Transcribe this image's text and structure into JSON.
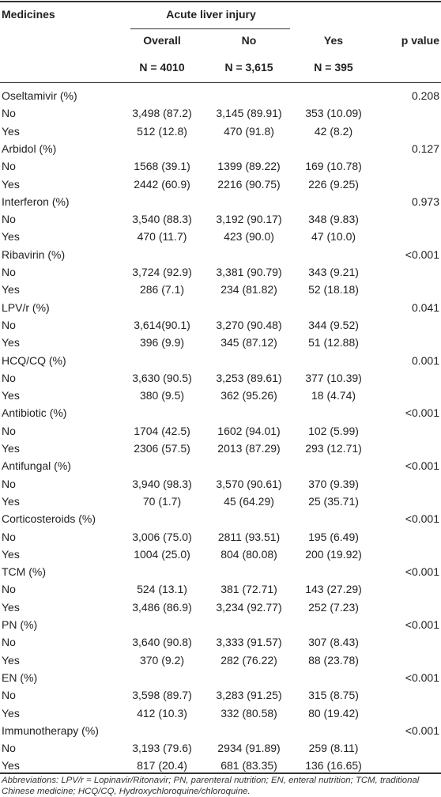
{
  "header": {
    "first_column": "Medicines",
    "group": "Acute liver injury",
    "columns": [
      "Overall",
      "No",
      "Yes",
      "p value"
    ],
    "n": [
      "N = 4010",
      "N = 3,615",
      "N = 395"
    ]
  },
  "table": {
    "groups": [
      {
        "name": "Oseltamivir (%)",
        "p": "0.208",
        "rows": [
          [
            "No",
            "3,498 (87.2)",
            "3,145 (89.91)",
            "353 (10.09)"
          ],
          [
            "Yes",
            "512 (12.8)",
            "470 (91.8)",
            "42 (8.2)"
          ]
        ]
      },
      {
        "name": "Arbidol (%)",
        "p": "0.127",
        "rows": [
          [
            "No",
            "1568 (39.1)",
            "1399 (89.22)",
            "169 (10.78)"
          ],
          [
            "Yes",
            "2442 (60.9)",
            "2216 (90.75)",
            "226 (9.25)"
          ]
        ]
      },
      {
        "name": "Interferon (%)",
        "p": "0.973",
        "rows": [
          [
            "No",
            "3,540 (88.3)",
            "3,192 (90.17)",
            "348 (9.83)"
          ],
          [
            "Yes",
            "470 (11.7)",
            "423 (90.0)",
            "47 (10.0)"
          ]
        ]
      },
      {
        "name": "Ribavirin (%)",
        "p": "<0.001",
        "rows": [
          [
            "No",
            "3,724 (92.9)",
            "3,381 (90.79)",
            "343 (9.21)"
          ],
          [
            "Yes",
            "286 (7.1)",
            "234 (81.82)",
            "52 (18.18)"
          ]
        ]
      },
      {
        "name": "LPV/r (%)",
        "p": "0.041",
        "rows": [
          [
            "No",
            "3,614(90.1)",
            "3,270 (90.48)",
            "344 (9.52)"
          ],
          [
            "Yes",
            "396 (9.9)",
            "345 (87.12)",
            "51 (12.88)"
          ]
        ]
      },
      {
        "name": "HCQ/CQ (%)",
        "p": "0.001",
        "rows": [
          [
            "No",
            "3,630 (90.5)",
            "3,253 (89.61)",
            "377 (10.39)"
          ],
          [
            "Yes",
            "380 (9.5)",
            "362 (95.26)",
            "18 (4.74)"
          ]
        ]
      },
      {
        "name": "Antibiotic (%)",
        "p": "<0.001",
        "rows": [
          [
            "No",
            "1704 (42.5)",
            "1602 (94.01)",
            "102 (5.99)"
          ],
          [
            "Yes",
            "2306 (57.5)",
            "2013 (87.29)",
            "293 (12.71)"
          ]
        ]
      },
      {
        "name": "Antifungal (%)",
        "p": "<0.001",
        "rows": [
          [
            "No",
            "3,940 (98.3)",
            "3,570 (90.61)",
            "370 (9.39)"
          ],
          [
            "Yes",
            "70 (1.7)",
            "45 (64.29)",
            "25 (35.71)"
          ]
        ]
      },
      {
        "name": "Corticosteroids (%)",
        "p": "<0.001",
        "rows": [
          [
            "No",
            "3,006 (75.0)",
            "2811 (93.51)",
            "195 (6.49)"
          ],
          [
            "Yes",
            "1004 (25.0)",
            "804 (80.08)",
            "200 (19.92)"
          ]
        ]
      },
      {
        "name": "TCM (%)",
        "p": "<0.001",
        "rows": [
          [
            "No",
            "524 (13.1)",
            "381 (72.71)",
            "143 (27.29)"
          ],
          [
            "Yes",
            "3,486 (86.9)",
            "3,234 (92.77)",
            "252 (7.23)"
          ]
        ]
      },
      {
        "name": "PN (%)",
        "p": "<0.001",
        "rows": [
          [
            "No",
            "3,640 (90.8)",
            "3,333 (91.57)",
            "307 (8.43)"
          ],
          [
            "Yes",
            "370 (9.2)",
            "282 (76.22)",
            "88 (23.78)"
          ]
        ]
      },
      {
        "name": "EN (%)",
        "p": "<0.001",
        "rows": [
          [
            "No",
            "3,598 (89.7)",
            "3,283 (91.25)",
            "315 (8.75)"
          ],
          [
            "Yes",
            "412 (10.3)",
            "332 (80.58)",
            "80 (19.42)"
          ]
        ]
      },
      {
        "name": "Immunotherapy (%)",
        "p": "<0.001",
        "rows": [
          [
            "No",
            "3,193 (79.6)",
            "2934 (91.89)",
            "259 (8.11)"
          ],
          [
            "Yes",
            "817 (20.4)",
            "681 (83.35)",
            "136 (16.65)"
          ]
        ]
      }
    ]
  },
  "footnote": "Abbreviations: LPV/r = Lopinavir/Ritonavir; PN, parenteral nutrition; EN, enteral nutrition; TCM, traditional Chinese medicine; HCQ/CQ, Hydroxychloroquine/chloroquine."
}
